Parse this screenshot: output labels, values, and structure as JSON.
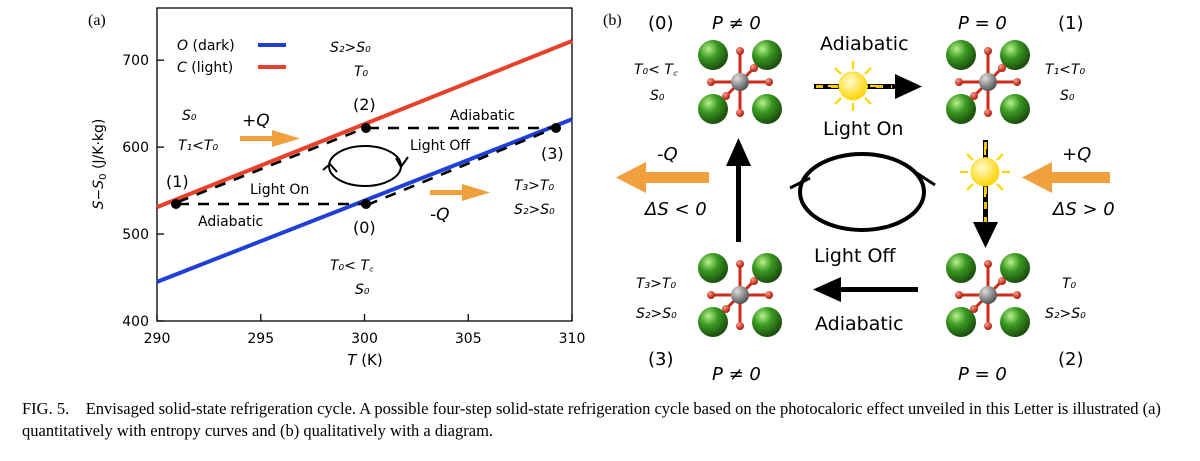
{
  "panel_a": {
    "label": "(a)",
    "chart_data": {
      "type": "line",
      "xlabel": "T (K)",
      "ylabel": "S−S0 (J/K·kg)",
      "xlim": [
        290,
        310
      ],
      "ylim": [
        400,
        760
      ],
      "xticks": [
        "290",
        "295",
        "300",
        "305",
        "310"
      ],
      "yticks": [
        "400",
        "500",
        "600",
        "700"
      ],
      "grid": false,
      "legend_placement": "top-left",
      "series": [
        {
          "name": "O (dark)",
          "color": "#1f3fd6",
          "x": [
            290,
            310
          ],
          "y": [
            445,
            632
          ]
        },
        {
          "name": "C (light)",
          "color": "#e8402a",
          "x": [
            290,
            310
          ],
          "y": [
            531,
            722
          ]
        }
      ],
      "points": [
        {
          "label": "(1)",
          "x": 291.2,
          "y": 540
        },
        {
          "label": "(2)",
          "x": 300.0,
          "y": 627
        },
        {
          "label": "(3)",
          "x": 309.3,
          "y": 627
        },
        {
          "label": "(0)",
          "x": 300.0,
          "y": 540
        }
      ]
    },
    "legend": [
      {
        "italic": "O",
        "rest": " (dark)"
      },
      {
        "italic": "C",
        "rest": " (light)"
      }
    ],
    "annotations": {
      "s2_top": "S₂>S₀",
      "t0_top": "T₀",
      "label_2": "(2)",
      "s0_left": "S₀",
      "t1_left": "T₁<T₀",
      "plus_q": "+Q",
      "adiabatic_top": "Adiabatic",
      "light_off": "Light Off",
      "label_3": "(3)",
      "t3_right": "T₃>T₀",
      "s2_right": "S₂>S₀",
      "label_1": "(1)",
      "light_on": "Light On",
      "adiabatic_bottom": "Adiabatic",
      "minus_q": "-Q",
      "label_0": "(0)",
      "t0_tc": "T₀< T꜀",
      "s0_bottom": "S₀"
    },
    "colors": {
      "arrow": "#f0a03c",
      "axis": "#000000"
    }
  },
  "panel_b": {
    "label": "(b)",
    "corners": {
      "tl": {
        "num": "(0)",
        "p": "P ≠ 0",
        "l1": "T₀< T꜀",
        "l2": "S₀"
      },
      "tr": {
        "num": "(1)",
        "p": "P = 0",
        "l1": "T₁<T₀",
        "l2": "S₀"
      },
      "br": {
        "num": "(2)",
        "p": "P = 0",
        "l1": "T₀",
        "l2": "S₂>S₀"
      },
      "bl": {
        "num": "(3)",
        "p": "P ≠ 0",
        "l1": "T₃>T₀",
        "l2": "S₂>S₀"
      }
    },
    "arrows": {
      "adiabatic_top": "Adiabatic",
      "light_on": "Light On",
      "light_off": "Light Off",
      "adiabatic_bottom": "Adiabatic",
      "minus_q": "-Q",
      "ds_neg": "ΔS < 0",
      "plus_q": "+Q",
      "ds_pos": "ΔS > 0"
    },
    "colors": {
      "sphere": "#3a8a25",
      "oxygen": "#cc2a1a",
      "metal": "#7a7a7a",
      "heat": "#f0a03c",
      "sun": "#ffe83a"
    }
  },
  "caption": {
    "title": "FIG. 5.",
    "text": "Envisaged solid-state refrigeration cycle. A possible four-step solid-state refrigeration cycle based on the photocaloric effect unveiled in this Letter is illustrated (a) quantitatively with entropy curves and (b) qualitatively with a diagram."
  }
}
